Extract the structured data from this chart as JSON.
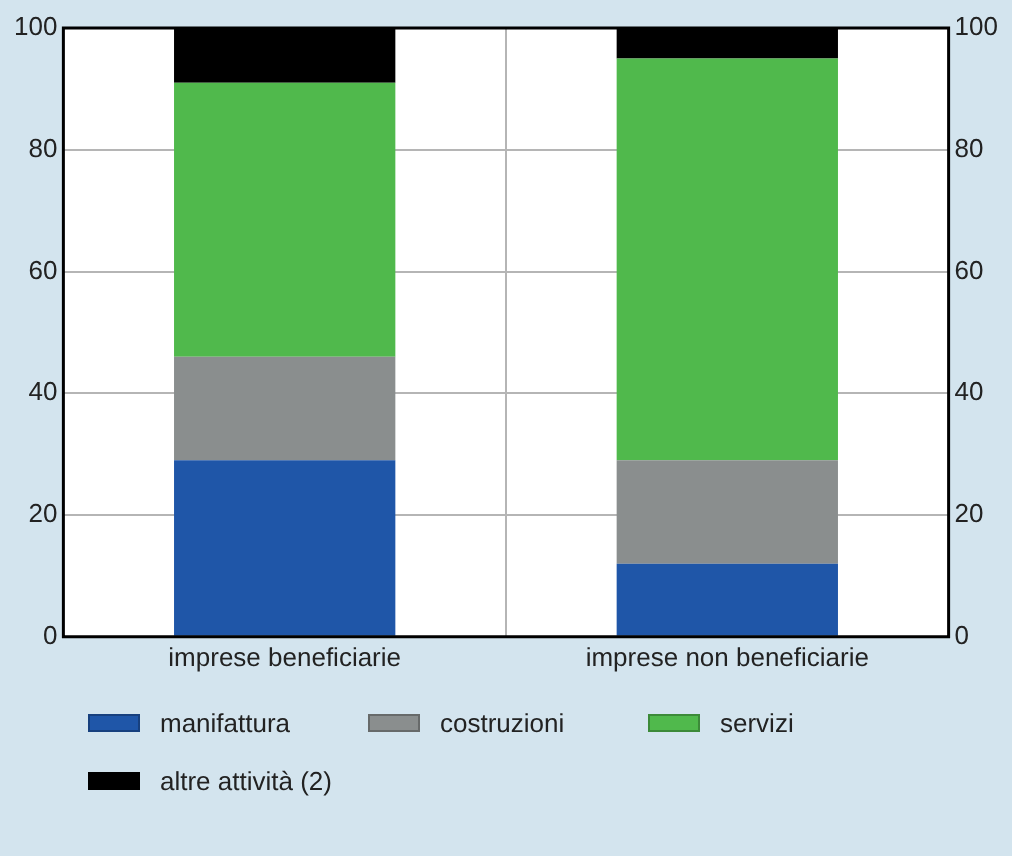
{
  "chart_data": {
    "type": "bar",
    "stacked": true,
    "categories": [
      "imprese beneficiarie",
      "imprese non beneficiarie"
    ],
    "series": [
      {
        "name": "manifattura",
        "color": "#1f56a8",
        "values": [
          29,
          12
        ]
      },
      {
        "name": "costruzioni",
        "color": "#8a8e8e",
        "values": [
          17,
          17
        ]
      },
      {
        "name": "servizi",
        "color": "#50b94c",
        "values": [
          45,
          66
        ]
      },
      {
        "name": "altre attività  (2)",
        "color": "#000000",
        "values": [
          9,
          5
        ]
      }
    ],
    "ylim": [
      0,
      100
    ],
    "yticks": [
      0,
      20,
      40,
      60,
      80,
      100
    ],
    "y2lim": [
      0,
      100
    ],
    "y2ticks": [
      0,
      20,
      40,
      60,
      80,
      100
    ],
    "grid": true,
    "legend": "bottom"
  }
}
